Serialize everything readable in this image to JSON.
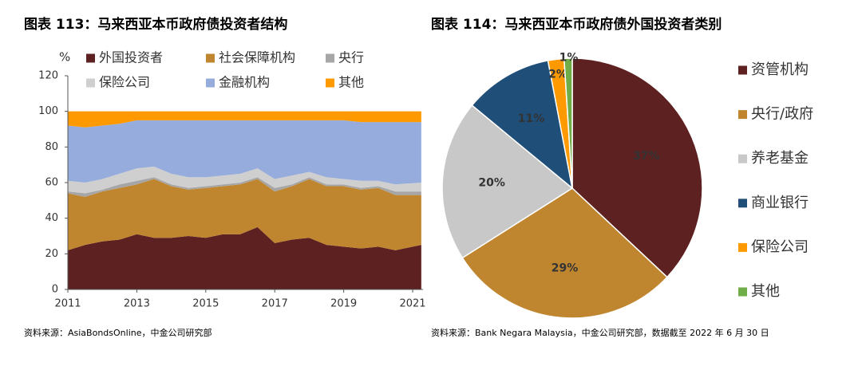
{
  "chart_data": [
    {
      "type": "area",
      "stacked": true,
      "title": "图表 113：马来西亚本币政府债投资者结构",
      "ylabel": "%",
      "source": "资料来源：AsiaBondsOnline，中金公司研究部",
      "x": [
        2011,
        2011.5,
        2012,
        2012.5,
        2013,
        2013.5,
        2014,
        2014.5,
        2015,
        2015.5,
        2016,
        2016.5,
        2017,
        2017.5,
        2018,
        2018.5,
        2019,
        2019.5,
        2020,
        2020.5,
        2021.25
      ],
      "xlim": [
        2011,
        2021.3
      ],
      "xticks": [
        2011,
        2013,
        2015,
        2017,
        2019,
        2021
      ],
      "ylim": [
        0,
        120
      ],
      "yticks": [
        0,
        20,
        40,
        60,
        80,
        100,
        120
      ],
      "grid": false,
      "series": [
        {
          "name": "外国投资者",
          "color": "#5e2121",
          "values": [
            22,
            25,
            27,
            28,
            31,
            29,
            29,
            30,
            29,
            31,
            31,
            35,
            26,
            28,
            29,
            25,
            24,
            23,
            24,
            22,
            25
          ]
        },
        {
          "name": "社会保障机构",
          "color": "#c0852f",
          "values": [
            32,
            27,
            28,
            29,
            28,
            33,
            29,
            26,
            28,
            27,
            28,
            27,
            29,
            30,
            33,
            33,
            34,
            33,
            33,
            31,
            28
          ]
        },
        {
          "name": "央行",
          "color": "#a6a6a6",
          "values": [
            1,
            2,
            1,
            2,
            2,
            1,
            1,
            1,
            1,
            1,
            1,
            1,
            2,
            1,
            1,
            1,
            1,
            1,
            1,
            2,
            2
          ]
        },
        {
          "name": "保险公司",
          "color": "#cfcfcf",
          "values": [
            6,
            6,
            6,
            6,
            7,
            6,
            6,
            6,
            5,
            5,
            5,
            5,
            5,
            5,
            3,
            4,
            3,
            4,
            3,
            4,
            5
          ]
        },
        {
          "name": "金融机构",
          "color": "#95acdc",
          "values": [
            31,
            31,
            30,
            28,
            27,
            26,
            30,
            32,
            32,
            31,
            30,
            27,
            33,
            31,
            29,
            32,
            33,
            33,
            33,
            35,
            34
          ]
        },
        {
          "name": "其他",
          "color": "#ff9900",
          "values": [
            8,
            9,
            8,
            7,
            5,
            5,
            5,
            5,
            5,
            5,
            5,
            5,
            5,
            5,
            5,
            5,
            5,
            6,
            6,
            6,
            6
          ]
        }
      ]
    },
    {
      "type": "pie",
      "title": "图表 114：马来西亚本币政府债外国投资者类别",
      "source": "资料来源：Bank Negara Malaysia，中金公司研究部，数据截至 2022 年 6 月 30 日",
      "categories": [
        "资管机构",
        "央行/政府",
        "养老基金",
        "商业银行",
        "保险公司",
        "其他"
      ],
      "values": [
        37,
        29,
        20,
        11,
        2,
        1
      ],
      "value_labels": [
        "37%",
        "29%",
        "20%",
        "11%",
        "2%",
        "1%"
      ],
      "colors": [
        "#5e2121",
        "#c0852f",
        "#c8c8c8",
        "#1f4e79",
        "#ff9900",
        "#70ad47"
      ],
      "label_colors": [
        "#ffffff",
        "#ffffff",
        "#ffffff",
        "#ffffff",
        "#000000",
        "#000000"
      ]
    }
  ]
}
